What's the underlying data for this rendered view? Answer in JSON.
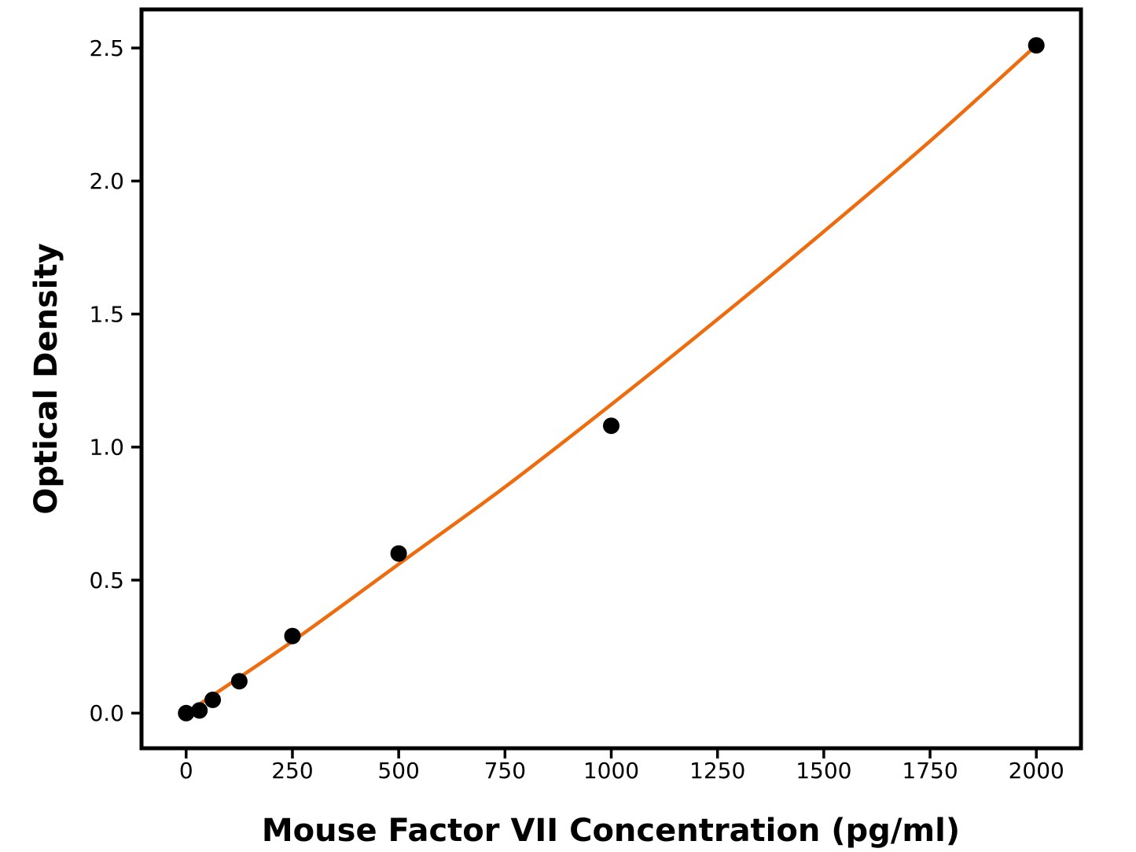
{
  "figure": {
    "background_color": "#ffffff",
    "axes_color": "#000000",
    "accent_color": "#ee6c0e"
  },
  "chart_data": {
    "type": "scatter",
    "title": "",
    "xlabel": "Mouse Factor VII Concentration (pg/ml)",
    "ylabel": "Optical Density",
    "xlim": [
      -105,
      2105
    ],
    "ylim": [
      -0.132,
      2.645
    ],
    "grid": false,
    "legend": false,
    "x_ticks": {
      "values": [
        0,
        250,
        500,
        750,
        1000,
        1250,
        1500,
        1750,
        2000
      ],
      "labels": [
        "0",
        "250",
        "500",
        "750",
        "1000",
        "1250",
        "1500",
        "1750",
        "2000"
      ]
    },
    "y_ticks": {
      "values": [
        0.0,
        0.5,
        1.0,
        1.5,
        2.0,
        2.5
      ],
      "labels": [
        "0.0",
        "0.5",
        "1.0",
        "1.5",
        "2.0",
        "2.5"
      ]
    },
    "series": [
      {
        "name": "fitted-curve",
        "type": "line",
        "color": "#ee6c0e",
        "line_width": 4.5,
        "x": [
          0,
          250,
          500,
          750,
          1000,
          1250,
          1500,
          1750,
          2000
        ],
        "y": [
          0.0,
          0.27,
          0.56,
          0.85,
          1.16,
          1.48,
          1.81,
          2.15,
          2.51
        ]
      },
      {
        "name": "standard-points",
        "type": "scatter",
        "color": "#000000",
        "marker": "circle",
        "marker_radius": 10.5,
        "x": [
          0,
          31.25,
          62.5,
          125,
          250,
          500,
          1000,
          2000
        ],
        "y": [
          0.0,
          0.01,
          0.05,
          0.12,
          0.29,
          0.6,
          1.08,
          2.51
        ]
      }
    ]
  }
}
